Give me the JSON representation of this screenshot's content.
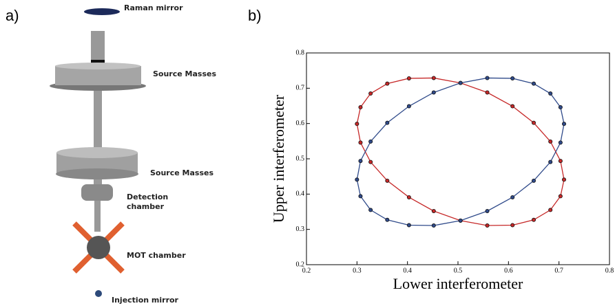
{
  "panel_a": {
    "label": "a)",
    "labels": [
      [
        "Raman mirror"
      ],
      [
        "Source Masses"
      ],
      [
        "Source Masses"
      ],
      [
        "Detection",
        "chamber"
      ],
      [
        "MOT chamber"
      ],
      [
        "Injection mirror"
      ]
    ]
  },
  "chart_data": {
    "type": "scatter",
    "panel_label": "b)",
    "xlabel": "Lower interferometer",
    "ylabel": "Upper interferometer",
    "xlim": [
      0.2,
      0.8
    ],
    "ylim": [
      0.2,
      0.8
    ],
    "xticks": [
      0.2,
      0.3,
      0.4,
      0.5,
      0.6,
      0.7,
      0.8
    ],
    "yticks": [
      0.2,
      0.3,
      0.4,
      0.5,
      0.6,
      0.7,
      0.8
    ],
    "line": true,
    "series": [
      {
        "color": "#c62828",
        "x": [
          0.71,
          0.703,
          0.683,
          0.65,
          0.608,
          0.558,
          0.505,
          0.452,
          0.403,
          0.36,
          0.327,
          0.307,
          0.3,
          0.307,
          0.327,
          0.36,
          0.403,
          0.452,
          0.505,
          0.558,
          0.608,
          0.65,
          0.683,
          0.703
        ],
        "values": [
          0.441,
          0.394,
          0.355,
          0.327,
          0.312,
          0.311,
          0.325,
          0.352,
          0.391,
          0.438,
          0.491,
          0.546,
          0.599,
          0.646,
          0.685,
          0.713,
          0.728,
          0.729,
          0.715,
          0.688,
          0.649,
          0.602,
          0.549,
          0.494
        ]
      },
      {
        "color": "#2f4a8a",
        "x": [
          0.71,
          0.703,
          0.683,
          0.65,
          0.608,
          0.558,
          0.505,
          0.452,
          0.403,
          0.36,
          0.327,
          0.307,
          0.3,
          0.307,
          0.327,
          0.36,
          0.403,
          0.452,
          0.505,
          0.558,
          0.608,
          0.65,
          0.683,
          0.703
        ],
        "values": [
          0.599,
          0.546,
          0.491,
          0.438,
          0.391,
          0.352,
          0.325,
          0.311,
          0.312,
          0.327,
          0.355,
          0.394,
          0.441,
          0.494,
          0.549,
          0.602,
          0.649,
          0.688,
          0.715,
          0.729,
          0.728,
          0.713,
          0.685,
          0.646
        ]
      }
    ]
  }
}
